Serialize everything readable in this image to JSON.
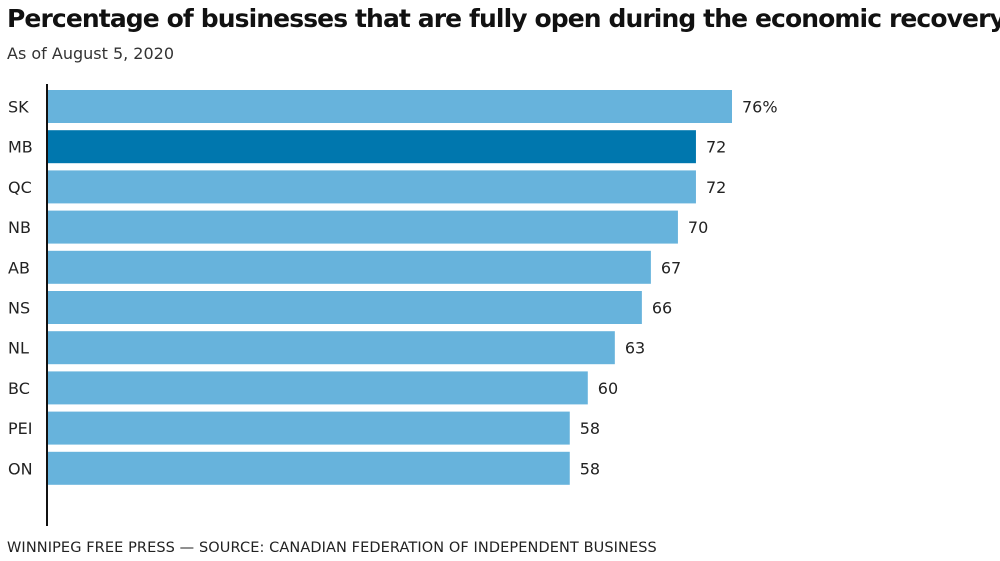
{
  "chart_data": {
    "type": "bar",
    "orientation": "horizontal",
    "title": "Percentage of businesses that are fully open during the economic recovery",
    "subtitle": "As of August 5, 2020",
    "categories": [
      "SK",
      "MB",
      "QC",
      "NB",
      "AB",
      "NS",
      "NL",
      "BC",
      "PEI",
      "ON"
    ],
    "values": [
      76,
      72,
      72,
      70,
      67,
      66,
      63,
      60,
      58,
      58
    ],
    "value_labels": [
      "76%",
      "72",
      "72",
      "70",
      "67",
      "66",
      "63",
      "60",
      "58",
      "58"
    ],
    "highlight_category": "MB",
    "xlim": [
      0,
      76
    ],
    "xlabel": "",
    "ylabel": "",
    "grid": false,
    "legend": "none"
  },
  "colors": {
    "bar": "#67b3dc",
    "bar_highlight": "#0077ae",
    "axis": "#111111"
  },
  "footer": {
    "credit": "WINNIPEG FREE PRESS — SOURCE: CANADIAN FEDERATION OF INDEPENDENT BUSINESS"
  }
}
